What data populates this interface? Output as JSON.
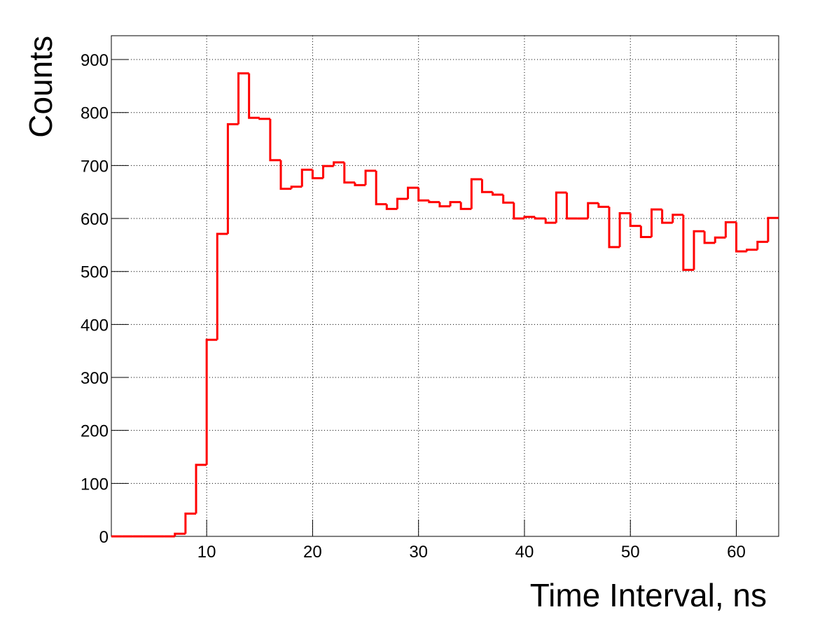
{
  "chart_data": {
    "type": "histogram",
    "x_label": "Time Interval, ns",
    "y_label": "Counts",
    "bins": [
      1,
      2,
      3,
      4,
      5,
      6,
      7,
      8,
      9,
      10,
      11,
      12,
      13,
      14,
      15,
      16,
      17,
      18,
      19,
      20,
      21,
      22,
      23,
      24,
      25,
      26,
      27,
      28,
      29,
      30,
      31,
      32,
      33,
      34,
      35,
      36,
      37,
      38,
      39,
      40,
      41,
      42,
      43,
      44,
      45,
      46,
      47,
      48,
      49,
      50,
      51,
      52,
      53,
      54,
      55,
      56,
      57,
      58,
      59,
      60,
      61,
      62,
      63,
      64
    ],
    "values": [
      0,
      0,
      0,
      0,
      0,
      0,
      5,
      43,
      135,
      371,
      571,
      778,
      874,
      790,
      788,
      710,
      656,
      660,
      692,
      676,
      699,
      706,
      668,
      663,
      690,
      627,
      618,
      637,
      658,
      634,
      631,
      623,
      631,
      618,
      674,
      650,
      645,
      630,
      600,
      603,
      600,
      592,
      649,
      600,
      600,
      629,
      622,
      546,
      610,
      586,
      565,
      617,
      592,
      607,
      503,
      576,
      554,
      564,
      593,
      538,
      541,
      556,
      601
    ],
    "color": "#ff0000",
    "xlim": [
      1,
      64
    ],
    "xticks": [
      10,
      20,
      30,
      40,
      50,
      60
    ],
    "ylim": [
      0,
      945
    ],
    "yticks": [
      0,
      100,
      200,
      300,
      400,
      500,
      600,
      700,
      800,
      900
    ],
    "grid": true
  }
}
